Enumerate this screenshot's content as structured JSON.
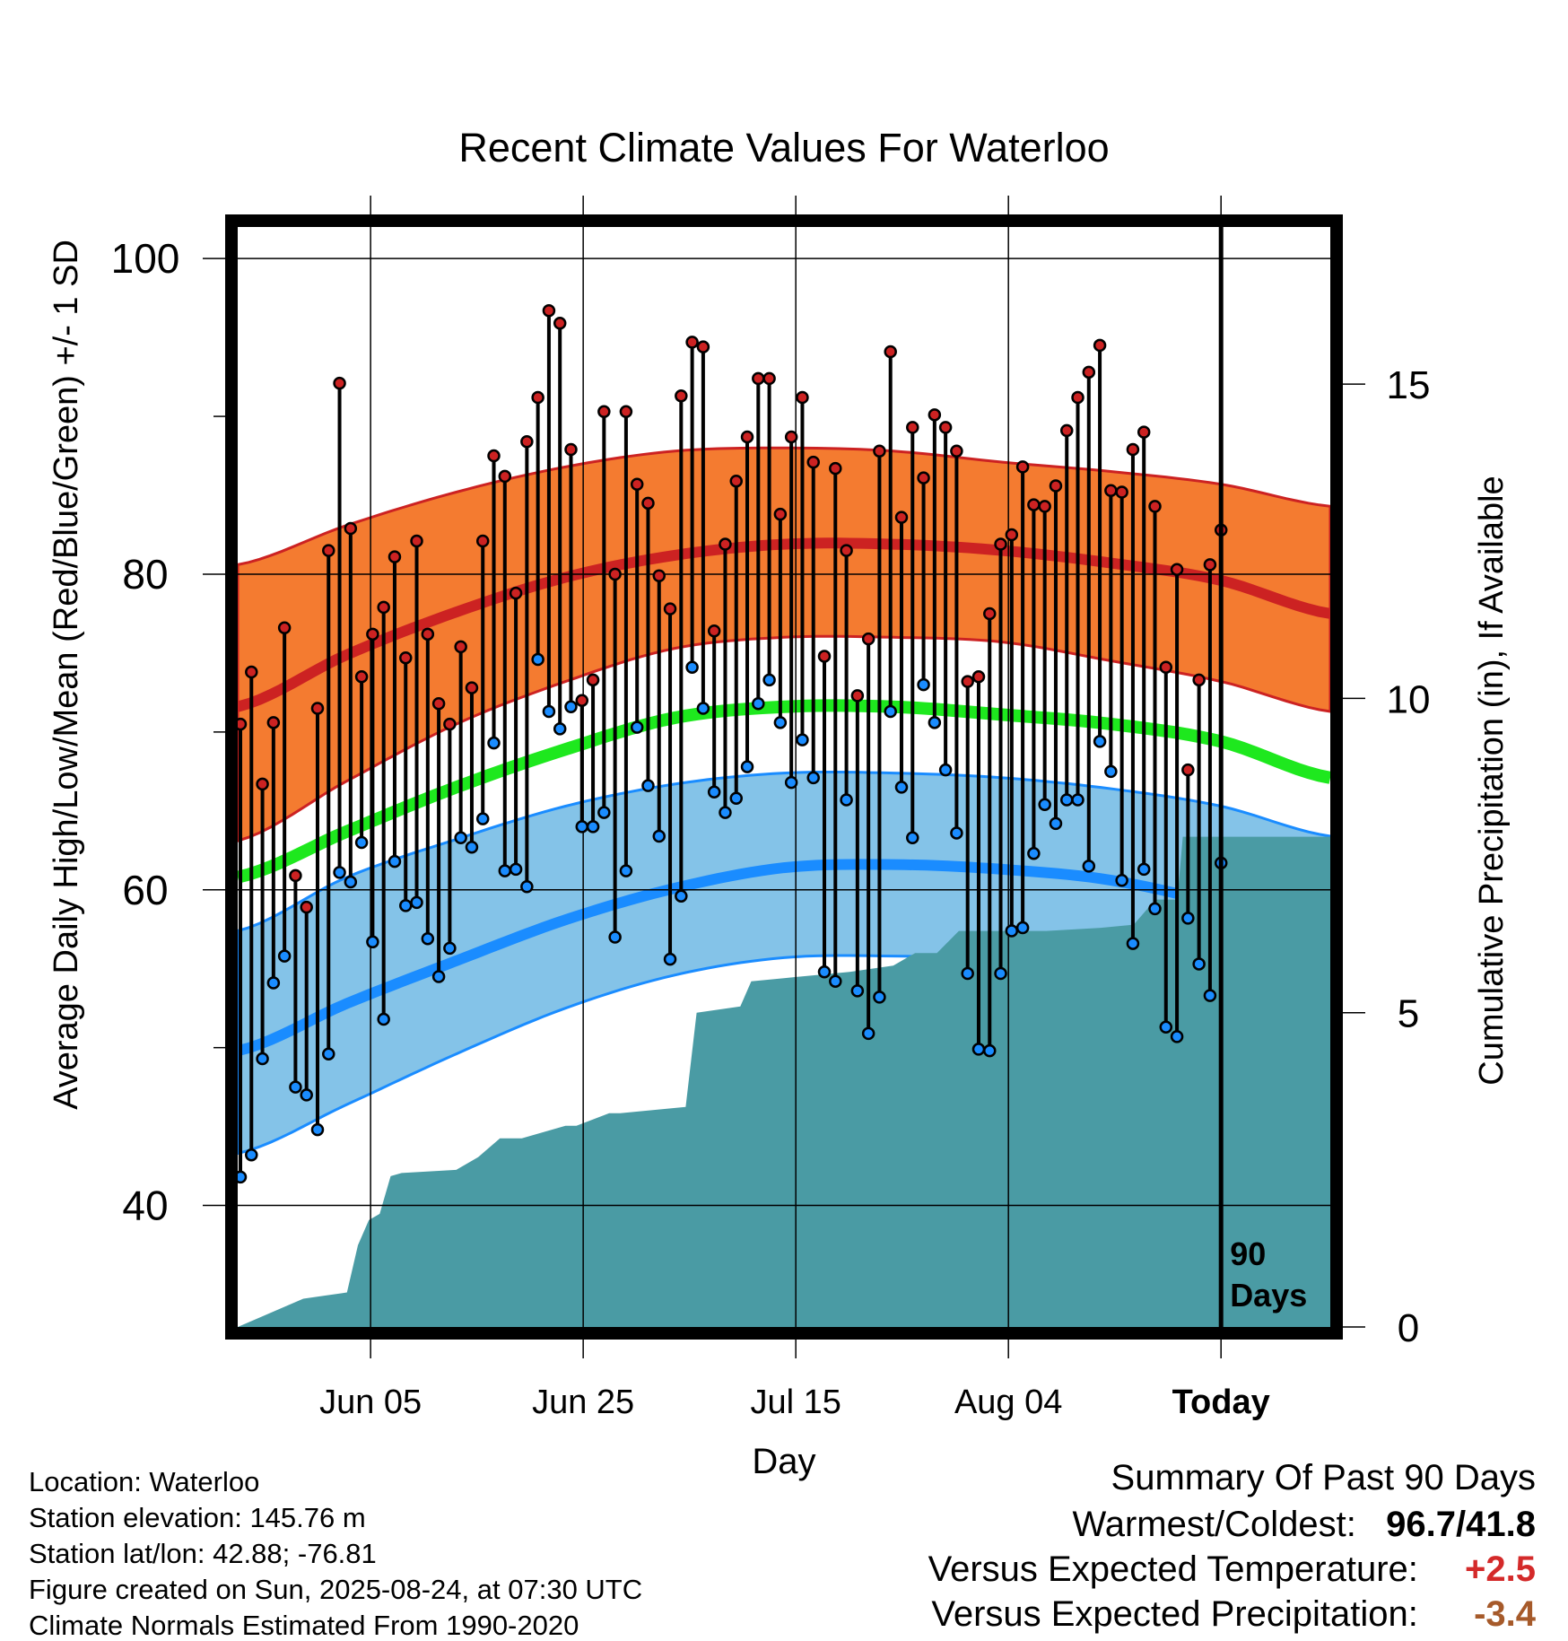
{
  "chart_data": {
    "type": "line",
    "title": "Recent Climate Values For Waterloo",
    "xlabel": "Day",
    "ylabel": "Average Daily High/Low/Mean (Red/Blue/Green) +/- 1 SD",
    "y2label": "Cumulative Precipitation (in), If Available",
    "xtick_labels": [
      "Jun 05",
      "Jun 25",
      "Jul 15",
      "Aug 04",
      "Today"
    ],
    "ytick_labels": [
      "100",
      "80",
      "60",
      "40"
    ],
    "y2tick_labels": [
      "15",
      "10",
      "5",
      "0"
    ],
    "ylim": [
      32.3,
      102
    ],
    "y2lim": [
      0,
      17.5
    ],
    "xlim": [
      0,
      100
    ],
    "today_day": 90,
    "today_label": [
      "90",
      "Days"
    ],
    "grid": true,
    "series_colors": {
      "high": "#cc2222",
      "high_band": "#f47b30",
      "mean": "#1ee81e",
      "low": "#1a8cff",
      "low_band": "#84c3e8",
      "precip": "#4a9ba4"
    },
    "normals": {
      "days": [
        0,
        10,
        20,
        30,
        40,
        50,
        60,
        70,
        80,
        90,
        100
      ],
      "high_mean": [
        71.6,
        74.9,
        77.6,
        79.8,
        81.2,
        81.9,
        81.9,
        81.5,
        80.7,
        79.6,
        77.5
      ],
      "high_upper": [
        80.6,
        83.1,
        85.2,
        86.8,
        87.8,
        88.0,
        87.8,
        87.1,
        86.5,
        85.7,
        84.3
      ],
      "high_lower": [
        63.1,
        66.9,
        70.5,
        73.2,
        75.3,
        76.0,
        76.0,
        75.7,
        74.5,
        73.2,
        71.3
      ],
      "mean": [
        60.8,
        63.7,
        66.5,
        68.9,
        70.9,
        71.6,
        71.6,
        71.1,
        70.5,
        69.4,
        67.1
      ],
      "low_mean": [
        49.8,
        52.8,
        55.5,
        58.1,
        60.1,
        61.4,
        61.6,
        61.3,
        60.6,
        59.0,
        56.4
      ],
      "low_upper": [
        57.4,
        60.8,
        63.2,
        65.3,
        66.7,
        67.4,
        67.4,
        67.1,
        66.4,
        65.3,
        63.4
      ],
      "low_lower": [
        43.3,
        46.4,
        49.6,
        52.5,
        54.6,
        55.7,
        55.8,
        55.5,
        54.1,
        52.2,
        49.9
      ]
    },
    "daily_high": [
      70.5,
      73.8,
      66.7,
      70.6,
      76.6,
      60.9,
      58.9,
      71.5,
      81.5,
      92.1,
      82.9,
      73.5,
      76.2,
      77.9,
      81.1,
      74.7,
      82.1,
      76.2,
      71.8,
      70.5,
      75.4,
      72.8,
      82.1,
      87.5,
      86.2,
      78.8,
      88.4,
      91.2,
      96.7,
      95.9,
      87.9,
      72.0,
      73.3,
      90.3,
      80.0,
      90.3,
      85.7,
      84.5,
      79.9,
      77.8,
      91.3,
      94.7,
      94.4,
      76.4,
      81.9,
      85.9,
      88.7,
      92.4,
      92.4,
      83.8,
      88.7,
      91.2,
      87.1,
      74.8,
      86.7,
      81.5,
      72.3,
      75.9,
      87.8,
      94.1,
      83.6,
      89.3,
      86.1,
      90.1,
      89.3,
      87.8,
      73.2,
      73.5,
      77.5,
      81.9,
      82.5,
      86.8,
      84.4,
      84.3,
      85.6,
      89.1,
      91.2,
      92.8,
      94.5,
      85.3,
      85.2,
      87.9,
      89.0,
      84.3,
      74.1,
      80.3,
      67.6,
      73.3,
      80.6,
      82.8
    ],
    "daily_low": [
      41.8,
      43.2,
      49.3,
      54.1,
      55.8,
      47.5,
      47.0,
      44.8,
      49.6,
      61.1,
      60.5,
      63.0,
      56.7,
      51.8,
      61.8,
      59.0,
      59.2,
      56.9,
      54.5,
      56.3,
      63.3,
      62.7,
      64.5,
      69.3,
      61.2,
      61.3,
      60.2,
      74.6,
      71.3,
      70.2,
      71.6,
      64.0,
      64.0,
      64.9,
      57.0,
      61.2,
      70.3,
      66.6,
      63.4,
      55.6,
      59.6,
      74.1,
      71.5,
      66.2,
      64.9,
      65.8,
      67.8,
      71.8,
      73.3,
      70.6,
      66.8,
      69.5,
      67.1,
      54.8,
      54.2,
      65.7,
      53.6,
      50.9,
      53.2,
      71.3,
      66.5,
      63.3,
      73.0,
      70.6,
      67.6,
      63.6,
      54.7,
      49.9,
      49.8,
      54.7,
      57.4,
      57.6,
      62.3,
      65.4,
      64.2,
      65.7,
      65.7,
      61.5,
      69.4,
      67.5,
      60.6,
      56.6,
      61.3,
      58.8,
      51.3,
      50.7,
      58.2,
      55.3,
      53.3,
      61.7
    ],
    "precip_cumulative": {
      "x": [
        0,
        2,
        4,
        6,
        8,
        10,
        11,
        12,
        13,
        14,
        15,
        20,
        22,
        24,
        26,
        30,
        31,
        34,
        35,
        38,
        41,
        42,
        46,
        47,
        50,
        53,
        56,
        60,
        62,
        64,
        66,
        68,
        70,
        74,
        79,
        82,
        84,
        86,
        86.5,
        88,
        100
      ],
      "values": [
        0.0,
        0.15,
        0.3,
        0.45,
        0.5,
        0.55,
        1.3,
        1.7,
        1.8,
        2.4,
        2.45,
        2.5,
        2.7,
        3.0,
        3.0,
        3.2,
        3.2,
        3.4,
        3.4,
        3.45,
        3.5,
        5.0,
        5.1,
        5.5,
        5.55,
        5.6,
        5.65,
        5.75,
        5.95,
        5.95,
        6.3,
        6.3,
        6.3,
        6.3,
        6.35,
        6.4,
        6.8,
        6.8,
        7.8,
        7.8,
        7.8
      ]
    }
  },
  "info": {
    "location": "Location: Waterloo",
    "elevation": "Station elevation: 145.76 m",
    "latlon": "Station lat/lon: 42.88; -76.81",
    "created": "Figure created on Sun, 2025-08-24, at 07:30 UTC",
    "normals": "Climate Normals Estimated From 1990-2020"
  },
  "summary": {
    "title": "Summary Of Past 90 Days",
    "warm_cold_label": "Warmest/Coldest:",
    "warmest": "96.7",
    "sep": "/",
    "coldest": "41.8",
    "temp_label": "Versus Expected Temperature:",
    "temp_value": "+2.5",
    "temp_color": "#d42a2a",
    "precip_label": "Versus Expected Precipitation:",
    "precip_value": "-3.4",
    "precip_color": "#a65a2a"
  }
}
